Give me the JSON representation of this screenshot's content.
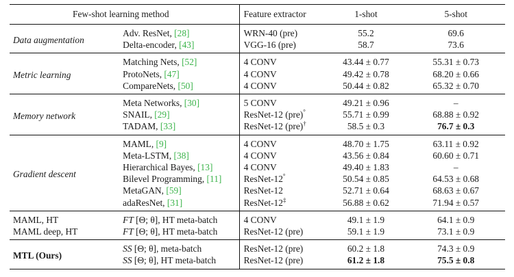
{
  "headers": {
    "method": "Few-shot learning method",
    "feature": "Feature extractor",
    "shot1": "1-shot",
    "shot5": "5-shot"
  },
  "groups": [
    {
      "category": "Data augmentation",
      "rows": [
        {
          "method": "Adv. ResNet, ",
          "ref": "[28]",
          "feature": "WRN-40 (pre)",
          "shot1": "55.2",
          "shot5": "69.6"
        },
        {
          "method": "Delta-encoder, ",
          "ref": "[43]",
          "feature": "VGG-16 (pre)",
          "shot1": "58.7",
          "shot5": "73.6"
        }
      ]
    },
    {
      "category": "Metric learning",
      "rows": [
        {
          "method": "Matching Nets, ",
          "ref": "[52]",
          "feature": "4 CONV",
          "shot1": "43.44 ± 0.77",
          "shot5": "55.31 ± 0.73"
        },
        {
          "method": "ProtoNets, ",
          "ref": "[47]",
          "feature": "4 CONV",
          "shot1": "49.42 ± 0.78",
          "shot5": "68.20 ± 0.66"
        },
        {
          "method": "CompareNets, ",
          "ref": "[50]",
          "feature": "4 CONV",
          "shot1": "50.44 ± 0.82",
          "shot5": "65.32 ± 0.70"
        }
      ]
    },
    {
      "category": "Memory network",
      "rows": [
        {
          "method": "Meta Networks, ",
          "ref": "[30]",
          "feature": "5 CONV",
          "shot1": "49.21 ± 0.96",
          "shot5": "–"
        },
        {
          "method": "SNAIL, ",
          "ref": "[29]",
          "feature": "ResNet-12 (pre)",
          "sup": "°",
          "shot1": "55.71 ± 0.99",
          "shot5": "68.88 ± 0.92"
        },
        {
          "method": "TADAM, ",
          "ref": "[33]",
          "feature": "ResNet-12 (pre)",
          "sup": "†",
          "shot1": "58.5 ± 0.3",
          "shot5_bold": "76.7 ± 0.3"
        }
      ]
    },
    {
      "category": "Gradient descent",
      "rows": [
        {
          "method": "MAML, ",
          "ref": "[9]",
          "feature": "4 CONV",
          "shot1": "48.70 ± 1.75",
          "shot5": "63.11 ± 0.92"
        },
        {
          "method": "Meta-LSTM, ",
          "ref": "[38]",
          "feature": "4 CONV",
          "shot1": "43.56 ± 0.84",
          "shot5": "60.60 ± 0.71"
        },
        {
          "method": "Hierarchical Bayes, ",
          "ref": "[13]",
          "feature": "4 CONV",
          "shot1": "49.40 ± 1.83",
          "shot5": "–"
        },
        {
          "method": "Bilevel Programming, ",
          "ref": "[11]",
          "feature": "ResNet-12",
          "sup": "°",
          "shot1": "50.54 ± 0.85",
          "shot5": "64.53 ± 0.68"
        },
        {
          "method": "MetaGAN, ",
          "ref": "[59]",
          "feature": "ResNet-12",
          "shot1": "52.71 ± 0.64",
          "shot5": "68.63 ± 0.67"
        },
        {
          "method": "adaResNet, ",
          "ref": "[31]",
          "feature": "ResNet-12",
          "sup": "‡",
          "shot1": "56.88 ± 0.62",
          "shot5": "71.94 ± 0.57"
        }
      ]
    },
    {
      "rows": [
        {
          "label": "MAML, HT",
          "m_it": "FT",
          "m_rest": " [Θ; θ], HT meta-batch",
          "feature": "4 CONV",
          "shot1": "49.1 ± 1.9",
          "shot5": "64.1 ± 0.9"
        },
        {
          "label": "MAML deep, HT",
          "m_it": "FT",
          "m_rest": " [Θ; θ], HT meta-batch",
          "feature": "ResNet-12 (pre)",
          "shot1": "59.1 ± 1.9",
          "shot5": "73.1 ± 0.9"
        }
      ]
    },
    {
      "category": "MTL (Ours)",
      "rows": [
        {
          "m_it": "SS",
          "m_rest": " [Θ; θ], meta-batch",
          "feature": "ResNet-12 (pre)",
          "shot1": "60.2 ± 1.8",
          "shot5": "74.3 ± 0.9"
        },
        {
          "m_it": "SS",
          "m_rest": " [Θ; θ], HT meta-batch",
          "feature": "ResNet-12 (pre)",
          "shot1_bold": "61.2 ± 1.8",
          "shot5_bold": "75.5 ± 0.8"
        }
      ]
    }
  ]
}
